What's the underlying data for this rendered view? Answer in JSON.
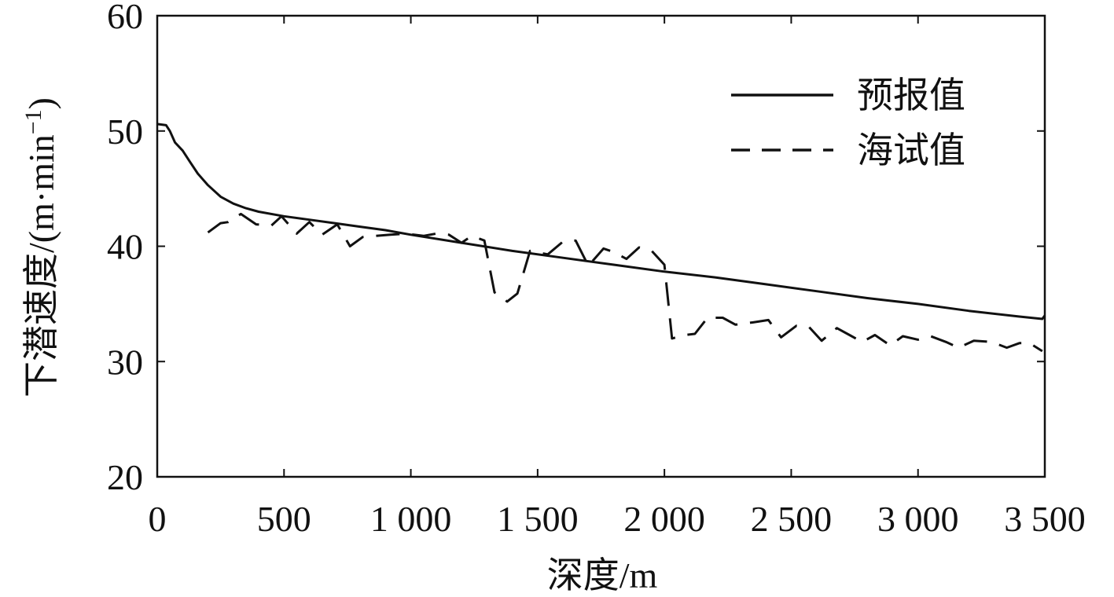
{
  "chart_data": {
    "type": "line",
    "title": "",
    "xlabel": "深度/m",
    "ylabel": "下潜速度/(m·min",
    "ylabel_exponent": "−1",
    "ylabel_close": ")",
    "xlim": [
      0,
      3500
    ],
    "ylim": [
      20,
      60
    ],
    "x_ticks": [
      0,
      500,
      1000,
      1500,
      2000,
      2500,
      3000,
      3500
    ],
    "x_tick_labels": [
      "0",
      "500",
      "1 000",
      "1 500",
      "2 000",
      "2 500",
      "3 000",
      "3 500"
    ],
    "y_ticks": [
      20,
      30,
      40,
      50,
      60
    ],
    "y_tick_labels": [
      "20",
      "30",
      "40",
      "50",
      "60"
    ],
    "grid": false,
    "legend_position": "top-right",
    "series": [
      {
        "name": "预报值",
        "style": "solid",
        "color": "#111111",
        "x": [
          0,
          35,
          50,
          70,
          100,
          130,
          160,
          200,
          250,
          300,
          350,
          400,
          500,
          600,
          700,
          800,
          900,
          1000,
          1200,
          1400,
          1600,
          1800,
          2000,
          2200,
          2400,
          2600,
          2800,
          3000,
          3200,
          3400,
          3490,
          3500
        ],
        "y": [
          50.6,
          50.5,
          50.0,
          49.0,
          48.3,
          47.3,
          46.3,
          45.3,
          44.3,
          43.7,
          43.3,
          43.0,
          42.6,
          42.3,
          42.0,
          41.7,
          41.4,
          41.0,
          40.3,
          39.6,
          39.0,
          38.4,
          37.8,
          37.3,
          36.7,
          36.1,
          35.5,
          35.0,
          34.4,
          33.9,
          33.7,
          34.0
        ]
      },
      {
        "name": "海试值",
        "style": "dashed",
        "color": "#111111",
        "x": [
          200,
          250,
          280,
          330,
          390,
          450,
          490,
          550,
          600,
          650,
          710,
          760,
          810,
          860,
          920,
          980,
          1050,
          1100,
          1150,
          1200,
          1240,
          1290,
          1330,
          1380,
          1420,
          1470,
          1540,
          1600,
          1650,
          1700,
          1760,
          1800,
          1850,
          1900,
          1950,
          2000,
          2030,
          2080,
          2120,
          2170,
          2230,
          2280,
          2350,
          2410,
          2460,
          2520,
          2570,
          2620,
          2680,
          2730,
          2780,
          2830,
          2890,
          2940,
          3000,
          3050,
          3110,
          3160,
          3220,
          3290,
          3350,
          3400,
          3440,
          3490
        ],
        "y": [
          41.2,
          42.0,
          42.1,
          42.8,
          41.9,
          41.8,
          42.6,
          41.1,
          42.1,
          41.0,
          41.9,
          40.0,
          40.8,
          40.9,
          41.0,
          41.1,
          40.9,
          41.1,
          41.0,
          40.3,
          40.9,
          40.5,
          36.0,
          35.2,
          35.9,
          39.6,
          39.3,
          40.4,
          40.5,
          38.3,
          39.8,
          39.5,
          38.9,
          39.9,
          39.6,
          38.4,
          32.0,
          32.3,
          32.4,
          33.8,
          33.8,
          33.2,
          33.4,
          33.6,
          32.1,
          33.1,
          33.0,
          31.8,
          32.9,
          32.3,
          31.7,
          32.3,
          31.4,
          32.2,
          31.9,
          32.2,
          31.7,
          31.2,
          31.8,
          31.7,
          31.2,
          31.6,
          31.6,
          30.9
        ]
      }
    ]
  }
}
